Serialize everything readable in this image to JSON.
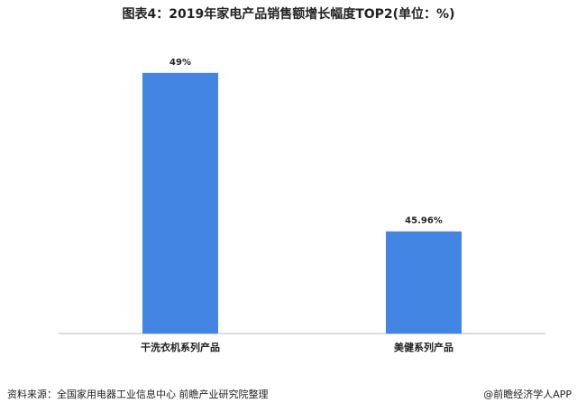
{
  "chart_data": {
    "type": "bar",
    "title": "图表4：2019年家电产品销售额增长幅度TOP2(单位：%)",
    "categories": [
      "干洗衣机系列产品",
      "美健系列产品"
    ],
    "values": [
      49,
      45.96
    ],
    "value_labels": [
      "49%",
      "45.96%"
    ],
    "color": "#4285e3",
    "ylim": [
      44,
      50
    ],
    "source": "资料来源：全国家用电器工业信息中心 前瞻产业研究院整理",
    "credit": "@前瞻经济学人APP"
  }
}
